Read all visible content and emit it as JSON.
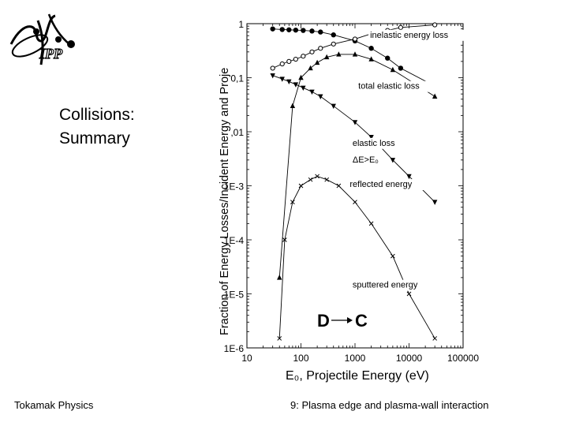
{
  "slide": {
    "title": "Collisions:\nSummary",
    "footer_left": "Tokamak Physics",
    "footer_right": "9: Plasma edge and plasma-wall interaction"
  },
  "logo": {
    "text": "IPP"
  },
  "chart_data": {
    "type": "line",
    "xscale": "log",
    "yscale": "log",
    "xlim": [
      10,
      100000
    ],
    "ylim": [
      1e-06,
      1
    ],
    "xlabel": "E₀, Projectile Energy (eV)",
    "ylabel": "Fraction of Energy Losses/Incident Energy and Proje",
    "x_tick_labels": [
      "10",
      "100",
      "1000",
      "10000",
      "100000"
    ],
    "y_tick_labels": [
      "1E-6",
      "1E-5",
      "1E-4",
      "1E-3",
      ",01",
      "0,1",
      "1"
    ],
    "reaction": {
      "projectile": "D",
      "target": "C"
    },
    "series": [
      {
        "name": "inelastic energy loss",
        "marker": "filled-circle",
        "x": [
          30,
          45,
          60,
          80,
          110,
          160,
          230,
          400,
          1000,
          2000,
          4000,
          7000,
          30000
        ],
        "y": [
          0.8,
          0.78,
          0.77,
          0.76,
          0.75,
          0.73,
          0.7,
          0.62,
          0.48,
          0.35,
          0.23,
          0.15,
          0.07
        ]
      },
      {
        "name": "total elastic loss",
        "marker": "open-circle",
        "x": [
          30,
          45,
          60,
          80,
          110,
          160,
          230,
          400,
          1000,
          2000,
          4000,
          7000,
          30000
        ],
        "y": [
          0.15,
          0.18,
          0.2,
          0.22,
          0.25,
          0.3,
          0.35,
          0.42,
          0.52,
          0.65,
          0.75,
          0.85,
          0.95
        ]
      },
      {
        "name": "elastic loss ΔE>E₀",
        "marker": "filled-triangle-up",
        "x": [
          40,
          70,
          100,
          150,
          200,
          300,
          500,
          1000,
          2000,
          5000,
          30000
        ],
        "y": [
          2e-05,
          0.03,
          0.1,
          0.15,
          0.19,
          0.24,
          0.27,
          0.27,
          0.22,
          0.14,
          0.045
        ]
      },
      {
        "name": "reflected energy",
        "marker": "filled-triangle-down",
        "x": [
          30,
          45,
          60,
          80,
          110,
          160,
          230,
          400,
          1000,
          2000,
          5000,
          10000,
          30000
        ],
        "y": [
          0.11,
          0.095,
          0.085,
          0.075,
          0.065,
          0.055,
          0.045,
          0.03,
          0.015,
          0.008,
          0.003,
          0.0015,
          0.0005
        ]
      },
      {
        "name": "sputtered energy",
        "marker": "x",
        "x": [
          40,
          50,
          70,
          100,
          150,
          200,
          300,
          500,
          1000,
          2000,
          5000,
          10000,
          30000
        ],
        "y": [
          1.5e-06,
          0.0001,
          0.0005,
          0.001,
          0.0013,
          0.0015,
          0.0013,
          0.001,
          0.0005,
          0.0002,
          5e-05,
          1e-05,
          1.5e-06
        ]
      }
    ],
    "annotations": [
      {
        "text": "inelastic energy loss",
        "x": 1900,
        "y": 0.55
      },
      {
        "text": "total elastic loss",
        "x": 1150,
        "y": 0.062
      },
      {
        "text": "elastic loss",
        "x": 900,
        "y": 0.0055
      },
      {
        "text": "ΔE>E₀",
        "x": 900,
        "y": 0.0027
      },
      {
        "text": "reflected energy",
        "x": 800,
        "y": 0.00095
      },
      {
        "text": "sputtered energy",
        "x": 900,
        "y": 1.3e-05
      }
    ]
  }
}
